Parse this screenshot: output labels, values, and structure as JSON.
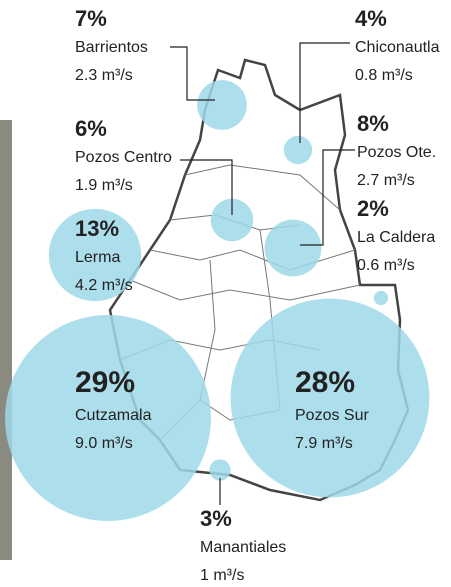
{
  "sources": [
    {
      "share": 7,
      "share_label": "7%",
      "name": "Barrientos",
      "flow": "2.3 m³/s"
    },
    {
      "share": 4,
      "share_label": "4%",
      "name": "Chiconautla",
      "flow": "0.8 m³/s"
    },
    {
      "share": 6,
      "share_label": "6%",
      "name": "Pozos Centro",
      "flow": "1.9 m³/s"
    },
    {
      "share": 8,
      "share_label": "8%",
      "name": "Pozos Ote.",
      "flow": "2.7 m³/s"
    },
    {
      "share": 2,
      "share_label": "2%",
      "name": "La Caldera",
      "flow": "0.6 m³/s"
    },
    {
      "share": 13,
      "share_label": "13%",
      "name": "Lerma",
      "flow": "4.2 m³/s"
    },
    {
      "share": 29,
      "share_label": "29%",
      "name": "Cutzamala",
      "flow": "9.0 m³/s"
    },
    {
      "share": 28,
      "share_label": "28%",
      "name": "Pozos Sur",
      "flow": "7.9 m³/s"
    },
    {
      "share": 3,
      "share_label": "3%",
      "name": "Manantiales",
      "flow": "1 m³/s"
    }
  ]
}
